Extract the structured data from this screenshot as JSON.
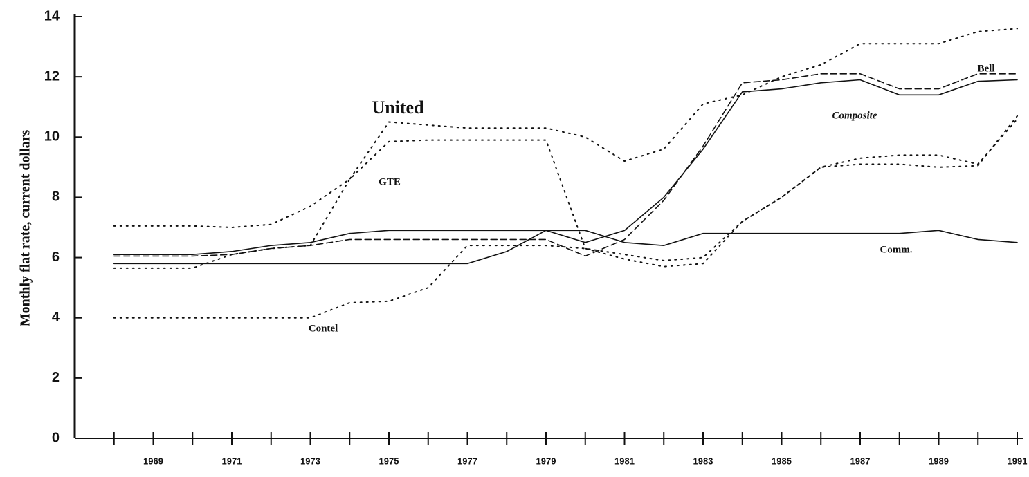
{
  "chart_data": {
    "type": "line",
    "y_label": "Monthly flat rate, current dollars",
    "x": [
      1968,
      1969,
      1970,
      1971,
      1972,
      1973,
      1974,
      1975,
      1976,
      1977,
      1978,
      1979,
      1980,
      1981,
      1982,
      1983,
      1984,
      1985,
      1986,
      1987,
      1988,
      1989,
      1990,
      1991
    ],
    "xlim": [
      1967,
      1991
    ],
    "xticks": [
      1969,
      1971,
      1973,
      1975,
      1977,
      1979,
      1981,
      1983,
      1985,
      1987,
      1989,
      1991
    ],
    "xminor_ticks": [
      1968,
      1970,
      1972,
      1974,
      1976,
      1978,
      1980,
      1982,
      1984,
      1986,
      1988,
      1990
    ],
    "ylim": [
      0,
      14
    ],
    "yticks": [
      0,
      2,
      4,
      6,
      8,
      10,
      12,
      14
    ],
    "grid": false,
    "series": [
      {
        "name": "United",
        "color": "#111111",
        "dash": "dotted",
        "values": [
          7.05,
          7.05,
          7.05,
          7.0,
          7.1,
          7.7,
          8.6,
          10.5,
          10.4,
          10.3,
          10.3,
          10.3,
          10.0,
          9.2,
          9.6,
          11.1,
          11.4,
          12.0,
          12.4,
          13.1,
          13.1,
          13.1,
          13.5,
          13.6
        ]
      },
      {
        "name": "GTE",
        "color": "#111111",
        "dash": "dotted",
        "values": [
          5.65,
          5.65,
          5.65,
          6.1,
          6.3,
          6.4,
          8.6,
          9.85,
          9.9,
          9.9,
          9.9,
          9.9,
          6.3,
          5.95,
          5.7,
          5.8,
          7.2,
          8.0,
          9.0,
          9.1,
          9.1,
          9.0,
          9.05,
          10.7
        ]
      },
      {
        "name": "Contel",
        "color": "#111111",
        "dash": "dotted",
        "values": [
          4.0,
          4.0,
          4.0,
          4.0,
          4.0,
          4.0,
          4.5,
          4.55,
          5.0,
          6.4,
          6.4,
          6.4,
          6.3,
          6.1,
          5.9,
          6.0,
          7.2,
          8.0,
          9.0,
          9.3,
          9.4,
          9.4,
          9.1,
          10.6
        ]
      },
      {
        "name": "Bell",
        "color": "#111111",
        "dash": "dashed",
        "values": [
          6.05,
          6.05,
          6.05,
          6.1,
          6.3,
          6.4,
          6.6,
          6.6,
          6.6,
          6.6,
          6.6,
          6.6,
          6.05,
          6.6,
          7.9,
          9.7,
          11.8,
          11.9,
          12.1,
          12.1,
          11.6,
          11.6,
          12.1,
          12.1
        ]
      },
      {
        "name": "Composite",
        "color": "#111111",
        "dash": "solid",
        "values": [
          6.1,
          6.1,
          6.1,
          6.2,
          6.4,
          6.5,
          6.8,
          6.9,
          6.9,
          6.9,
          6.9,
          6.9,
          6.5,
          6.9,
          8.0,
          9.6,
          11.5,
          11.6,
          11.8,
          11.9,
          11.4,
          11.4,
          11.85,
          11.9
        ]
      },
      {
        "name": "Comm.",
        "color": "#111111",
        "dash": "solid",
        "values": [
          5.8,
          5.8,
          5.8,
          5.8,
          5.8,
          5.8,
          5.8,
          5.8,
          5.8,
          5.8,
          6.2,
          6.9,
          6.9,
          6.5,
          6.4,
          6.8,
          6.8,
          6.8,
          6.8,
          6.8,
          6.8,
          6.9,
          6.6,
          6.5
        ]
      }
    ]
  }
}
